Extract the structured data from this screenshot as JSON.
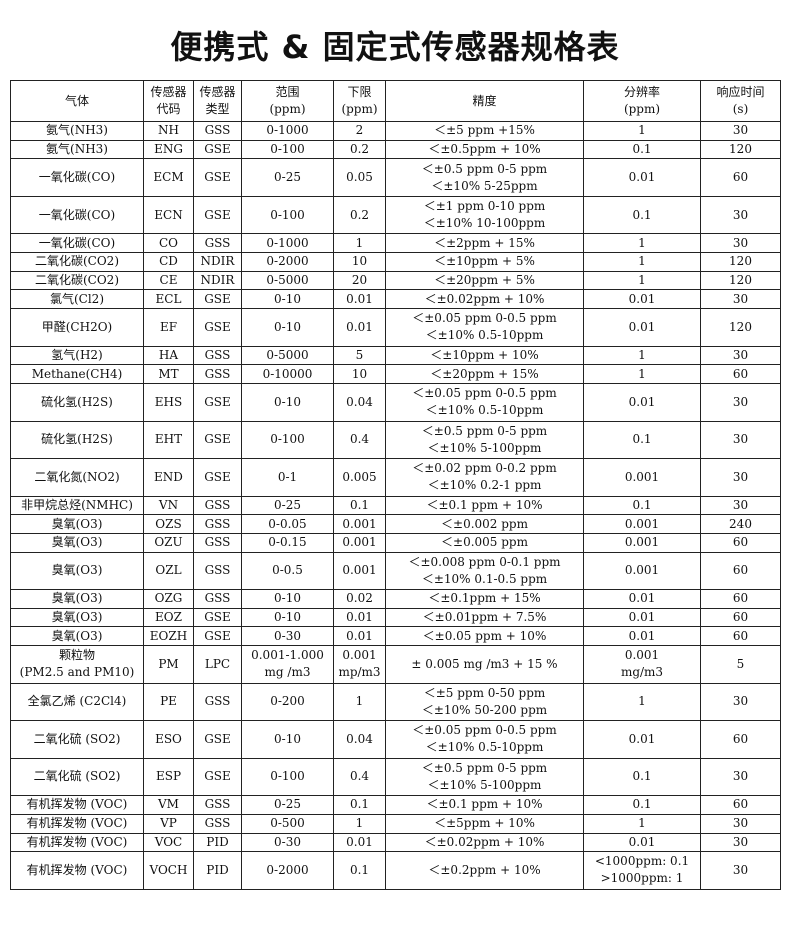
{
  "header": {
    "title": "便携式 & 固定式传感器规格表"
  },
  "table": {
    "header": [
      "气体",
      "传感器\n代码",
      "传感器\n类型",
      "范围\n(ppm)",
      "下限\n(ppm)",
      "精度",
      "分辨率\n(ppm)",
      "响应时间\n(s)"
    ],
    "rows": [
      [
        "氨气(NH3)",
        "NH",
        "GSS",
        "0-1000",
        "2",
        "＜±5 ppm +15%",
        "1",
        "30"
      ],
      [
        "氨气(NH3)",
        "ENG",
        "GSE",
        "0-100",
        "0.2",
        "＜±0.5ppm + 10%",
        "0.1",
        "120"
      ],
      [
        "一氧化碳(CO)",
        "ECM",
        "GSE",
        "0-25",
        "0.05",
        "＜±0.5 ppm 0-5 ppm\n＜±10% 5-25ppm",
        "0.01",
        "60"
      ],
      [
        "一氧化碳(CO)",
        "ECN",
        "GSE",
        "0-100",
        "0.2",
        "＜±1 ppm 0-10 ppm\n＜±10% 10-100ppm",
        "0.1",
        "30"
      ],
      [
        "一氧化碳(CO)",
        "CO",
        "GSS",
        "0-1000",
        "1",
        "＜±2ppm + 15%",
        "1",
        "30"
      ],
      [
        "二氧化碳(CO2)",
        "CD",
        "NDIR",
        "0-2000",
        "10",
        "＜±10ppm + 5%",
        "1",
        "120"
      ],
      [
        "二氧化碳(CO2)",
        "CE",
        "NDIR",
        "0-5000",
        "20",
        "＜±20ppm + 5%",
        "1",
        "120"
      ],
      [
        "氯气(Cl2)",
        "ECL",
        "GSE",
        "0-10",
        "0.01",
        "＜±0.02ppm + 10%",
        "0.01",
        "30"
      ],
      [
        "甲醛(CH2O)",
        "EF",
        "GSE",
        "0-10",
        "0.01",
        "＜±0.05 ppm 0-0.5 ppm\n＜±10% 0.5-10ppm",
        "0.01",
        "120"
      ],
      [
        "氢气(H2)",
        "HA",
        "GSS",
        "0-5000",
        "5",
        "＜±10ppm + 10%",
        "1",
        "30"
      ],
      [
        "Methane(CH4)",
        "MT",
        "GSS",
        "0-10000",
        "10",
        "＜±20ppm + 15%",
        "1",
        "60"
      ],
      [
        "硫化氢(H2S)",
        "EHS",
        "GSE",
        "0-10",
        "0.04",
        "＜±0.05 ppm 0-0.5 ppm\n＜±10% 0.5-10ppm",
        "0.01",
        "30"
      ],
      [
        "硫化氢(H2S)",
        "EHT",
        "GSE",
        "0-100",
        "0.4",
        "＜±0.5 ppm 0-5 ppm\n＜±10% 5-100ppm",
        "0.1",
        "30"
      ],
      [
        "二氧化氮(NO2)",
        "END",
        "GSE",
        "0-1",
        "0.005",
        "＜±0.02 ppm 0-0.2 ppm\n＜±10% 0.2-1 ppm",
        "0.001",
        "30"
      ],
      [
        "非甲烷总烃(NMHC)",
        "VN",
        "GSS",
        "0-25",
        "0.1",
        "＜±0.1 ppm + 10%",
        "0.1",
        "30"
      ],
      [
        "臭氧(O3)",
        "OZS",
        "GSS",
        "0-0.05",
        "0.001",
        "＜±0.002 ppm",
        "0.001",
        "240"
      ],
      [
        "臭氧(O3)",
        "OZU",
        "GSS",
        "0-0.15",
        "0.001",
        "＜±0.005 ppm",
        "0.001",
        "60"
      ],
      [
        "臭氧(O3)",
        "OZL",
        "GSS",
        "0-0.5",
        "0.001",
        "＜±0.008 ppm 0-0.1 ppm\n＜±10% 0.1-0.5 ppm",
        "0.001",
        "60"
      ],
      [
        "臭氧(O3)",
        "OZG",
        "GSS",
        "0-10",
        "0.02",
        "＜±0.1ppm + 15%",
        "0.01",
        "60"
      ],
      [
        "臭氧(O3)",
        "EOZ",
        "GSE",
        "0-10",
        "0.01",
        "＜±0.01ppm + 7.5%",
        "0.01",
        "60"
      ],
      [
        "臭氧(O3)",
        "EOZH",
        "GSE",
        "0-30",
        "0.01",
        "＜±0.05 ppm + 10%",
        "0.01",
        "60"
      ],
      [
        "颗粒物\n(PM2.5 and PM10)",
        "PM",
        "LPC",
        "0.001-1.000\nmg /m3",
        "0.001\nmp/m3",
        "± 0.005 mg /m3 + 15 %",
        "0.001\nmg/m3",
        "5"
      ],
      [
        "全氯乙烯 (C2Cl4)",
        "PE",
        "GSS",
        "0-200",
        "1",
        "＜±5 ppm 0-50 ppm\n＜±10% 50-200 ppm",
        "1",
        "30"
      ],
      [
        "二氧化硫 (SO2)",
        "ESO",
        "GSE",
        "0-10",
        "0.04",
        "＜±0.05 ppm 0-0.5 ppm\n＜±10% 0.5-10ppm",
        "0.01",
        "60"
      ],
      [
        "二氧化硫 (SO2)",
        "ESP",
        "GSE",
        "0-100",
        "0.4",
        "＜±0.5 ppm 0-5 ppm\n＜±10% 5-100ppm",
        "0.1",
        "30"
      ],
      [
        "有机挥发物 (VOC)",
        "VM",
        "GSS",
        "0-25",
        "0.1",
        "＜±0.1 ppm + 10%",
        "0.1",
        "60"
      ],
      [
        "有机挥发物 (VOC)",
        "VP",
        "GSS",
        "0-500",
        "1",
        "＜±5ppm + 10%",
        "1",
        "30"
      ],
      [
        "有机挥发物 (VOC)",
        "VOC",
        "PID",
        "0-30",
        "0.01",
        "＜±0.02ppm + 10%",
        "0.01",
        "30"
      ],
      [
        "有机挥发物 (VOC)",
        "VOCH",
        "PID",
        "0-2000",
        "0.1",
        "＜±0.2ppm + 10%",
        "<1000ppm: 0.1\n>1000ppm: 1",
        "30"
      ]
    ]
  }
}
